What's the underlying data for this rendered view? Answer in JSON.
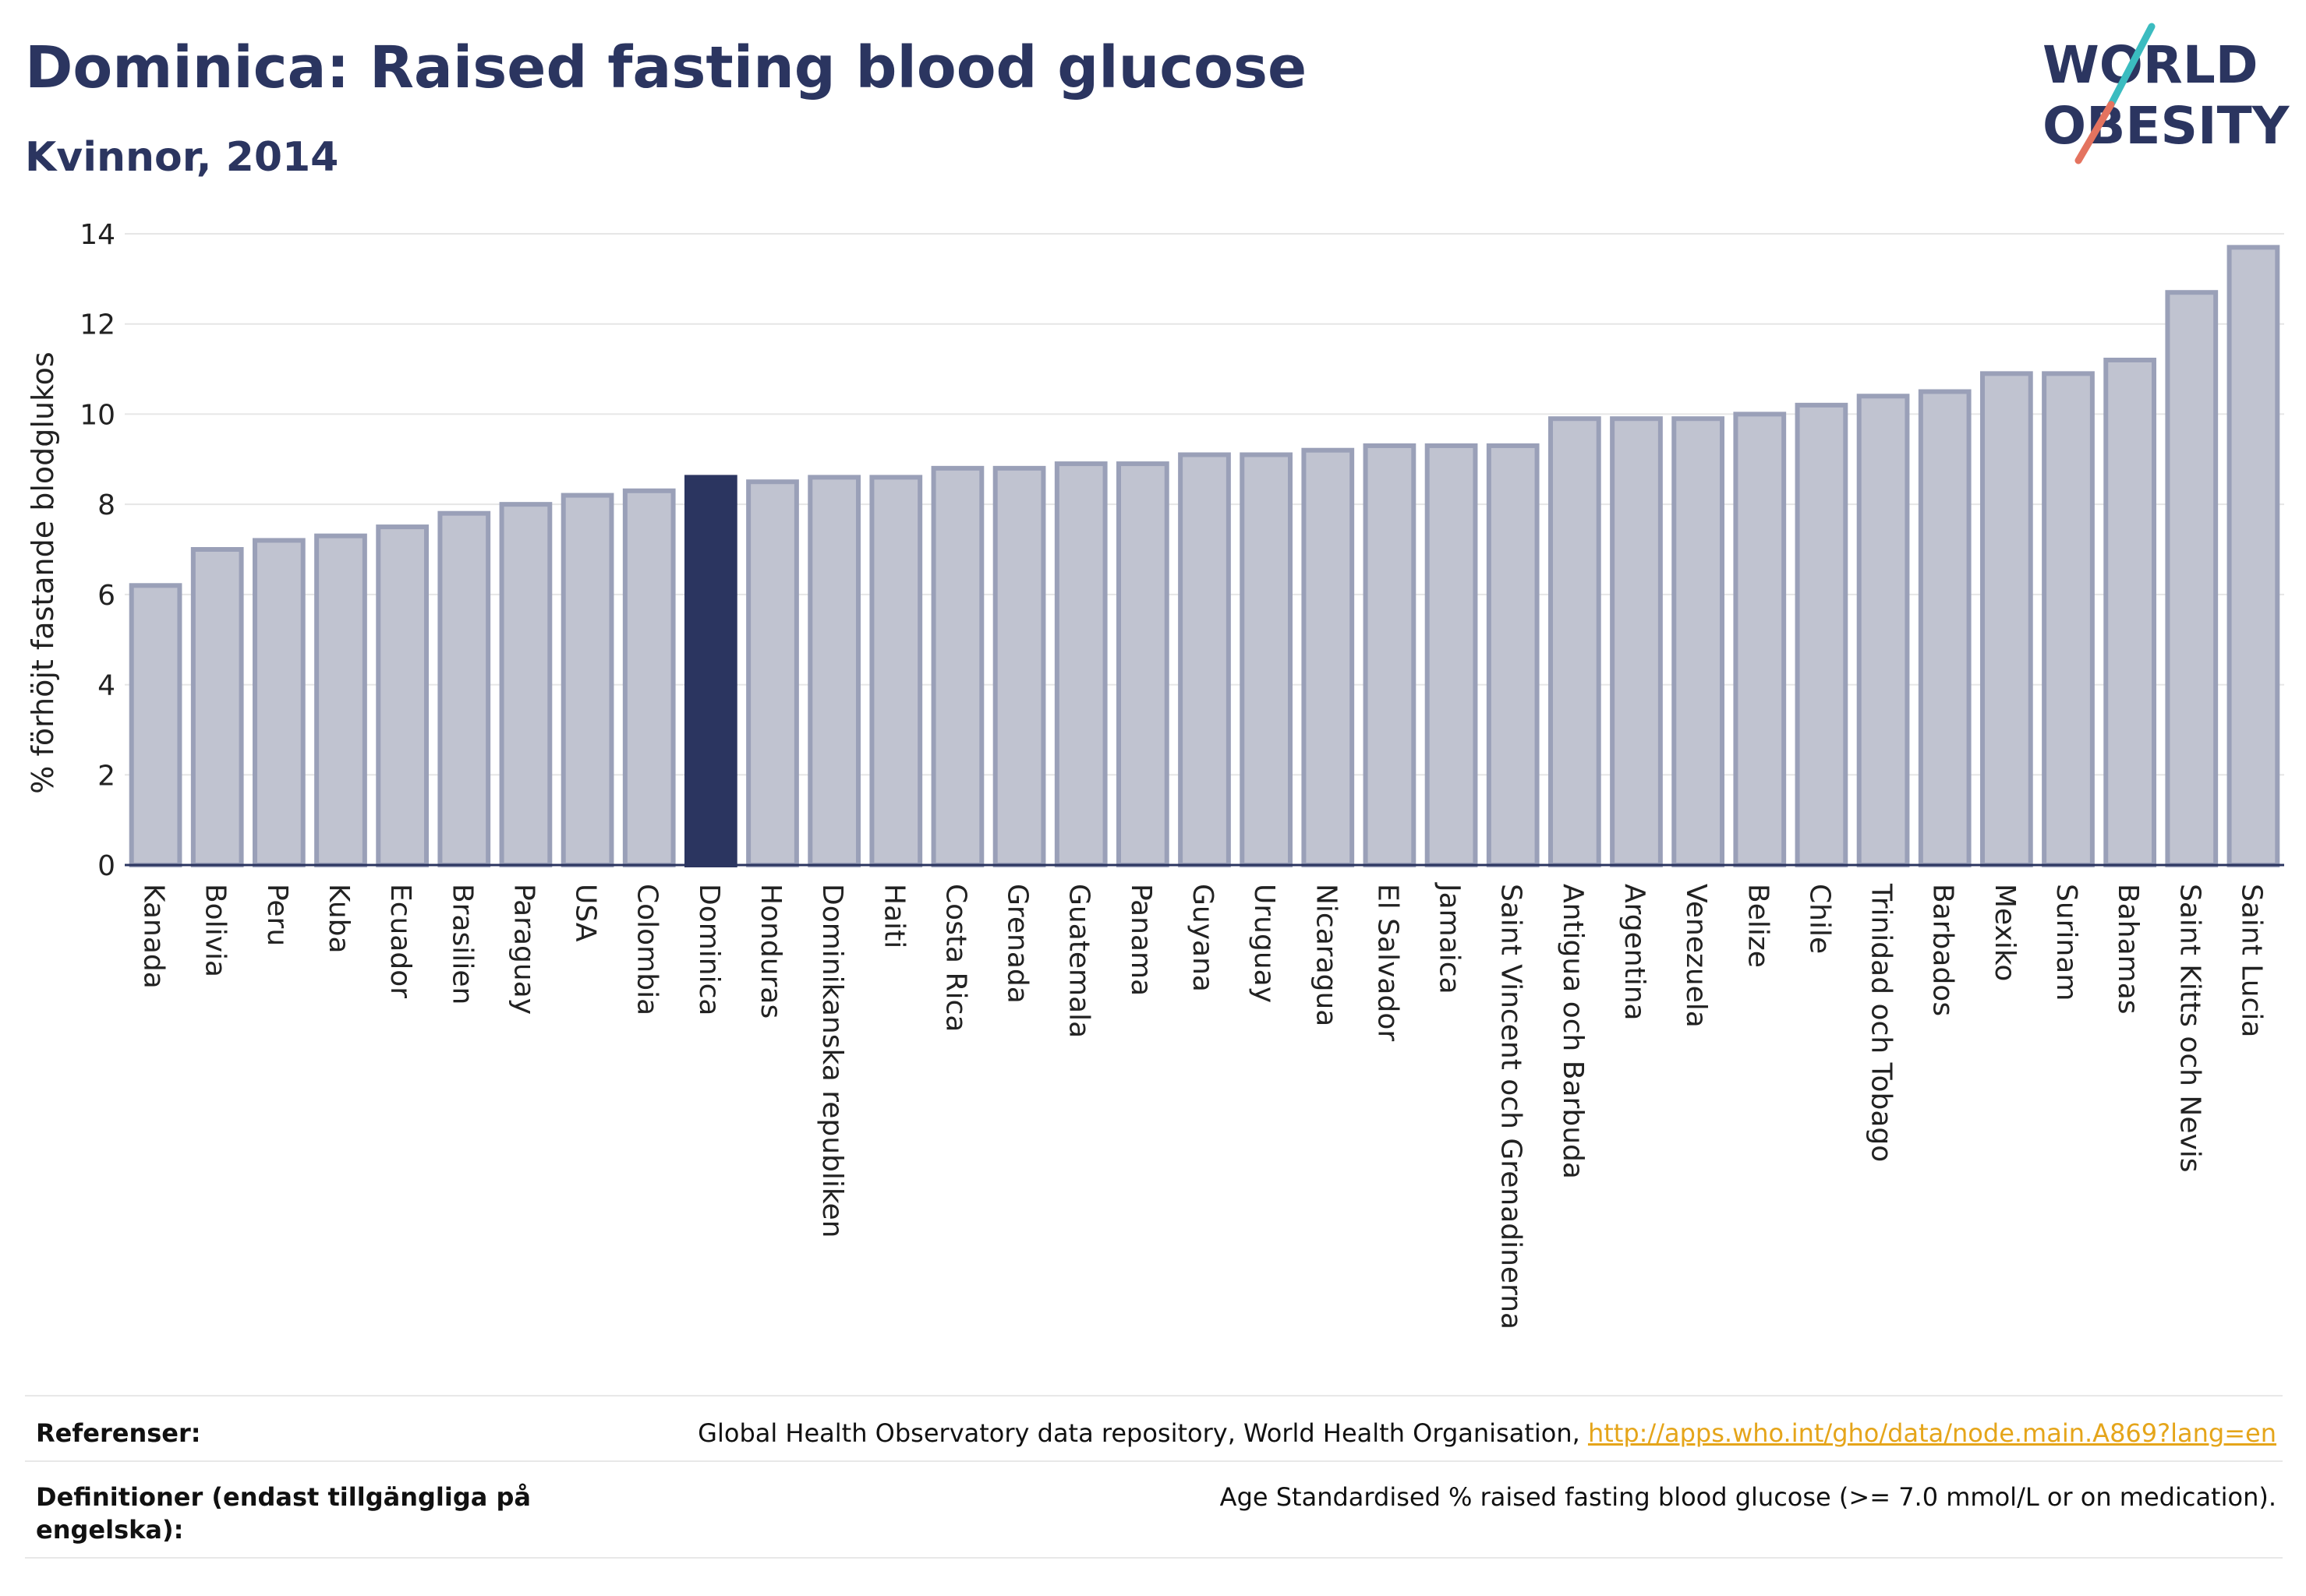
{
  "header": {
    "title": "Dominica: Raised fasting blood glucose",
    "subtitle": "Kvinnor, 2014",
    "logo_line1": "WORLD",
    "logo_line2": "OBESITY"
  },
  "chart_data": {
    "type": "bar",
    "title": "Dominica: Raised fasting blood glucose",
    "subtitle": "Kvinnor, 2014",
    "xlabel": "",
    "ylabel": "% förhöjt fastande blodglukos",
    "ylim": [
      0,
      14
    ],
    "yticks": [
      0,
      2,
      4,
      6,
      8,
      10,
      12,
      14
    ],
    "grid": true,
    "legend": "none",
    "highlight": "Dominica",
    "colors": {
      "bar": "#c0c3d0",
      "bar_edge": "#9aa0b8",
      "highlight": "#2b3560",
      "grid": "#e6e6e6",
      "axis": "#2b3560"
    },
    "categories": [
      "Kanada",
      "Bolivia",
      "Peru",
      "Kuba",
      "Ecuador",
      "Brasilien",
      "Paraguay",
      "USA",
      "Colombia",
      "Dominica",
      "Honduras",
      "Dominikanska republiken",
      "Haiti",
      "Costa Rica",
      "Grenada",
      "Guatemala",
      "Panama",
      "Guyana",
      "Uruguay",
      "Nicaragua",
      "El Salvador",
      "Jamaica",
      "Saint Vincent och Grenadinerna",
      "Antigua och Barbuda",
      "Argentina",
      "Venezuela",
      "Belize",
      "Chile",
      "Trinidad och Tobago",
      "Barbados",
      "Mexiko",
      "Surinam",
      "Bahamas",
      "Saint Kitts och Nevis",
      "Saint Lucia"
    ],
    "values": [
      6.2,
      7.0,
      7.2,
      7.3,
      7.5,
      7.8,
      8.0,
      8.2,
      8.3,
      8.6,
      8.5,
      8.6,
      8.6,
      8.8,
      8.8,
      8.9,
      8.9,
      9.1,
      9.1,
      9.2,
      9.3,
      9.3,
      9.3,
      9.9,
      9.9,
      9.9,
      10.0,
      10.2,
      10.4,
      10.5,
      10.9,
      10.9,
      11.2,
      12.7,
      13.7
    ]
  },
  "footer": {
    "references_label": "Referenser:",
    "references_text": "Global Health Observatory data repository, World Health Organisation, ",
    "references_link": "http://apps.who.int/gho/data/node.main.A869?lang=en",
    "definitions_label": "Definitioner (endast tillgängliga på engelska):",
    "definitions_text": "Age Standardised % raised fasting blood glucose (>= 7.0 mmol/L or on medication)."
  }
}
